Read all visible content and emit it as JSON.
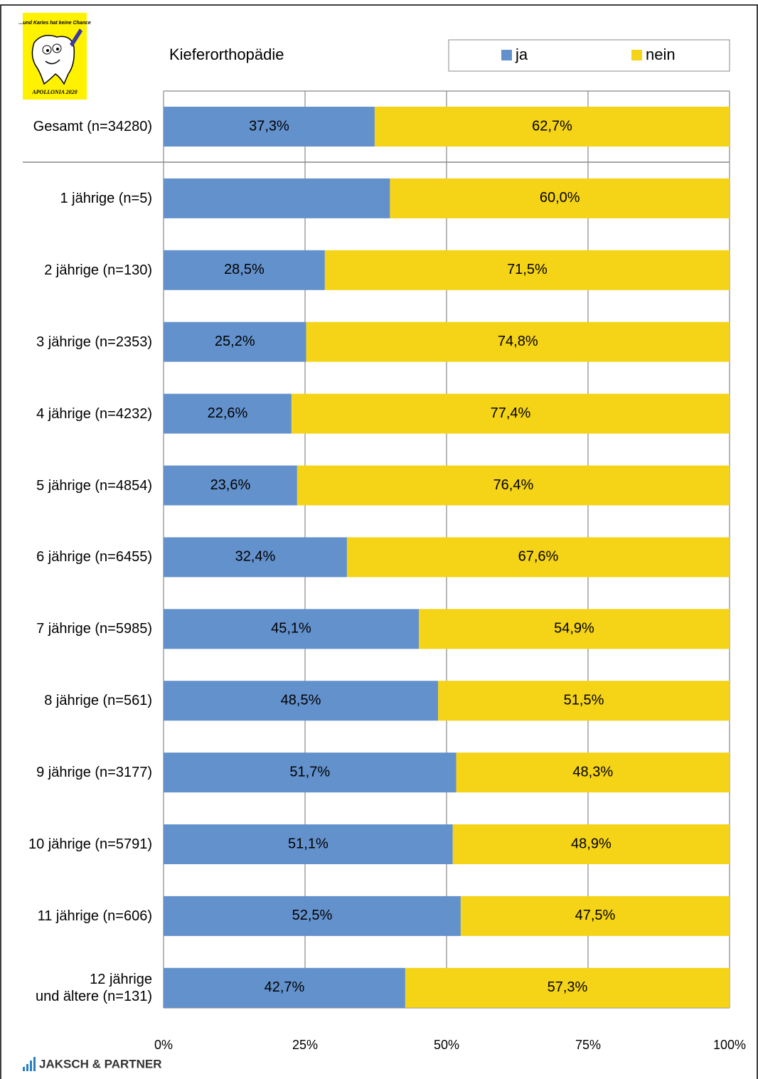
{
  "chart_data": {
    "type": "stacked-bar-horizontal",
    "title": "Kieferorthopädie",
    "categories": [
      "Gesamt (n=34280)",
      "1 jährige (n=5)",
      "2 jährige (n=130)",
      "3 jährige (n=2353)",
      "4 jährige (n=4232)",
      "5 jährige (n=4854)",
      "6 jährige (n=6455)",
      "7 jährige (n=5985)",
      "8 jährige (n=561)",
      "9 jährige (n=3177)",
      "10 jährige (n=5791)",
      "11 jährige (n=606)",
      "12 jährige\nund ältere (n=131)"
    ],
    "series": [
      {
        "name": "ja",
        "color": "#6391cc",
        "label_color": "#ffffff",
        "values": [
          37.3,
          40,
          28.5,
          25.2,
          22.6,
          23.6,
          32.4,
          45.1,
          48.5,
          51.7,
          51.1,
          52.5,
          42.7
        ],
        "value_labels": [
          "37,3%",
          null,
          "28,5%",
          "25,2%",
          "22,6%",
          "23,6%",
          "32,4%",
          "45,1%",
          "48,5%",
          "51,7%",
          "51,1%",
          "52,5%",
          "42,7%"
        ]
      },
      {
        "name": "nein",
        "color": "#f5d316",
        "label_color": "#000000",
        "values": [
          62.7,
          60,
          71.5,
          74.8,
          77.4,
          76.4,
          67.6,
          54.9,
          51.5,
          48.3,
          48.9,
          47.5,
          57.3
        ],
        "value_labels": [
          "62,7%",
          "60,0%",
          "71,5%",
          "74,8%",
          "77,4%",
          "76,4%",
          "67,6%",
          "54,9%",
          "51,5%",
          "48,3%",
          "48,9%",
          "47,5%",
          "57,3%"
        ]
      }
    ],
    "xlim": [
      0,
      100
    ],
    "xticks": [
      {
        "value": 0,
        "label": "0%"
      },
      {
        "value": 25,
        "label": "25%"
      },
      {
        "value": 50,
        "label": "50%"
      },
      {
        "value": 75,
        "label": "75%"
      },
      {
        "value": 100,
        "label": "100%"
      }
    ],
    "grid": true,
    "legend": "top-right"
  },
  "logo": {
    "slogan": "...und Karies hat keine Chance",
    "name": "APOLLONIA 2020"
  },
  "footer": "JAKSCH & PARTNER"
}
